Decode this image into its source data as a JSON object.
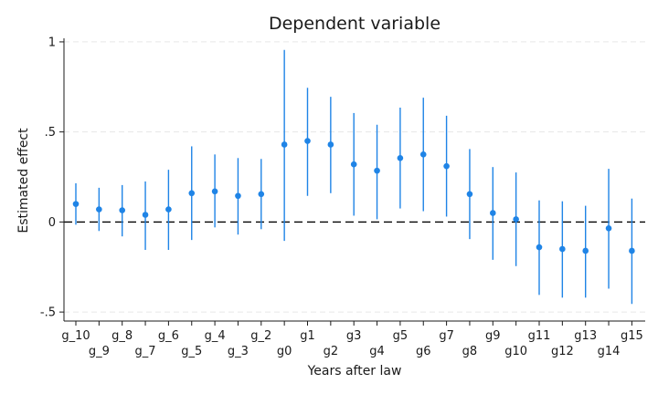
{
  "chart_data": {
    "type": "scatter",
    "title": "Dependent variable",
    "xlabel": "Years after law",
    "ylabel": "Estimated effect",
    "ylim": [
      -0.55,
      1.03
    ],
    "y_ticks": [
      {
        "value": 1,
        "label": "1"
      },
      {
        "value": 0.5,
        "label": ".5"
      },
      {
        "value": 0,
        "label": "0"
      },
      {
        "value": -0.5,
        "label": "-.5"
      }
    ],
    "grid": "horizontal dashed",
    "reference_line": {
      "y": 0,
      "style": "dashed"
    },
    "colors": {
      "point": "#1f84e6",
      "ci": "#1f84e6",
      "zero_line": "#000000",
      "grid": "#e6e6e6"
    },
    "categories": [
      "g_10",
      "g_9",
      "g_8",
      "g_7",
      "g_6",
      "g_5",
      "g_4",
      "g_3",
      "g_2",
      "g0",
      "g1",
      "g2",
      "g3",
      "g4",
      "g5",
      "g6",
      "g7",
      "g8",
      "g9",
      "g10",
      "g11",
      "g12",
      "g13",
      "g14",
      "g15"
    ],
    "series": [
      {
        "values": [
          0.1,
          0.07,
          0.065,
          0.04,
          0.07,
          0.16,
          0.17,
          0.145,
          0.155,
          0.43,
          0.45,
          0.43,
          0.32,
          0.285,
          0.355,
          0.375,
          0.31,
          0.155,
          0.05,
          0.015,
          -0.14,
          -0.15,
          -0.16,
          -0.035,
          -0.16
        ],
        "ci_low": [
          -0.015,
          -0.05,
          -0.08,
          -0.155,
          -0.155,
          -0.1,
          -0.03,
          -0.07,
          -0.04,
          -0.105,
          0.145,
          0.16,
          0.035,
          0.015,
          0.075,
          0.06,
          0.03,
          -0.095,
          -0.21,
          -0.245,
          -0.405,
          -0.42,
          -0.42,
          -0.37,
          -0.455
        ],
        "ci_high": [
          0.215,
          0.19,
          0.205,
          0.225,
          0.29,
          0.42,
          0.375,
          0.355,
          0.35,
          0.955,
          0.745,
          0.695,
          0.605,
          0.54,
          0.635,
          0.69,
          0.59,
          0.405,
          0.305,
          0.275,
          0.12,
          0.115,
          0.09,
          0.295,
          0.13
        ]
      }
    ]
  }
}
